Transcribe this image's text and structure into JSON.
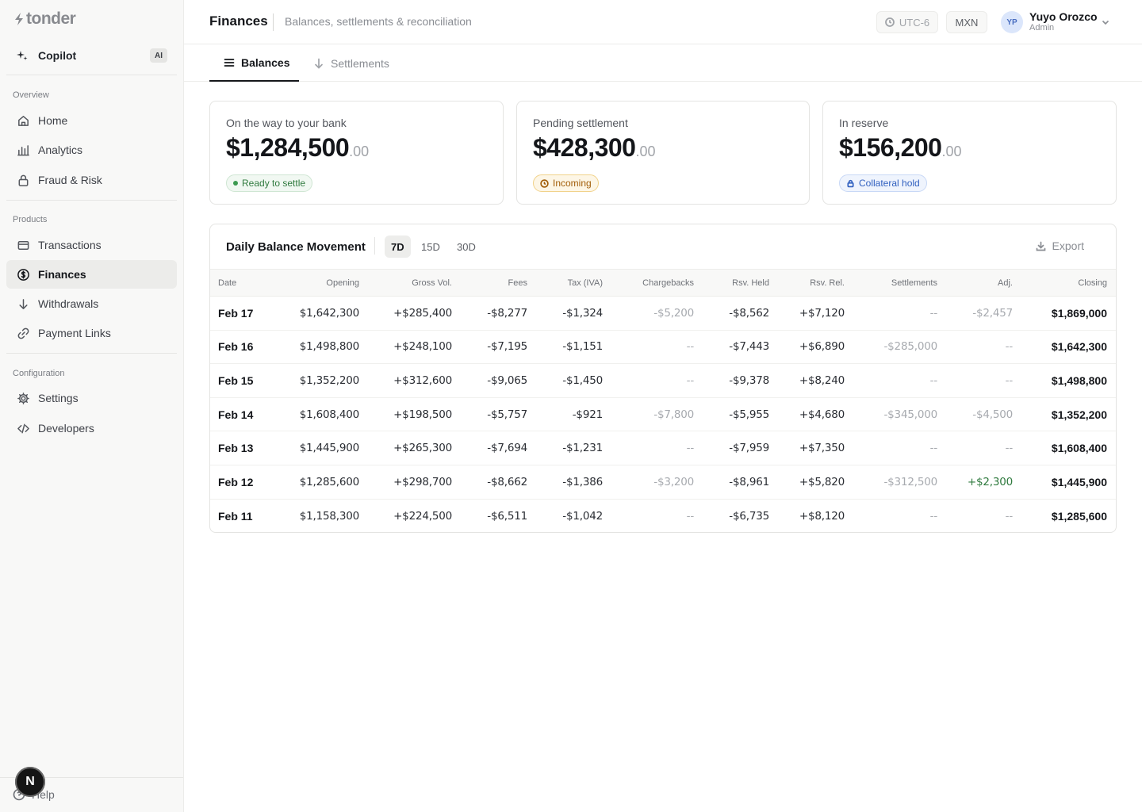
{
  "app": {
    "logo_text": "tonder"
  },
  "sidebar": {
    "copilot": {
      "label": "Copilot",
      "badge": "AI"
    },
    "sections": [
      {
        "label": "Overview"
      },
      {
        "label": "Products"
      },
      {
        "label": "Configuration"
      }
    ],
    "items": [
      {
        "label": "Home",
        "icon": "home-icon"
      },
      {
        "label": "Analytics",
        "icon": "bar-chart-icon"
      },
      {
        "label": "Fraud & Risk",
        "icon": "lock-icon"
      },
      {
        "label": "Transactions",
        "icon": "card-icon"
      },
      {
        "label": "Finances",
        "icon": "dollar-circle-icon",
        "active": true
      },
      {
        "label": "Withdrawals",
        "icon": "arrow-down-icon"
      },
      {
        "label": "Payment Links",
        "icon": "link-icon"
      },
      {
        "label": "Settings",
        "icon": "gear-icon"
      },
      {
        "label": "Developers",
        "icon": "code-icon"
      }
    ],
    "help_label": "Help",
    "floating_avatar": "N"
  },
  "header": {
    "title": "Finances",
    "subtitle": "Balances, settlements & reconciliation",
    "timezone": "UTC-6",
    "currency": "MXN",
    "user": {
      "initials": "YP",
      "name": "Yuyo Orozco",
      "role": "Admin"
    }
  },
  "tabs": [
    {
      "label": "Balances",
      "icon": "list-icon",
      "active": true
    },
    {
      "label": "Settlements",
      "icon": "arrow-down-icon",
      "active": false
    }
  ],
  "cards": [
    {
      "label": "On the way to your bank",
      "amount": "$1,284,500",
      "cents": ".00",
      "badge": "Ready to settle",
      "badge_color": "#2f7a3e"
    },
    {
      "label": "Pending settlement",
      "amount": "$428,300",
      "cents": ".00",
      "badge": "Incoming",
      "badge_color": "#a15c07"
    },
    {
      "label": "In reserve",
      "amount": "$156,200",
      "cents": ".00",
      "badge": "Collateral hold",
      "badge_color": "#2f5fbf"
    }
  ],
  "table_panel": {
    "title": "Daily Balance Movement",
    "ranges": [
      "7D",
      "15D",
      "30D"
    ],
    "active_range": "7D",
    "export_label": "Export",
    "columns": [
      "Date",
      "Opening",
      "Gross Vol.",
      "Fees",
      "Tax (IVA)",
      "Chargebacks",
      "Rsv. Held",
      "Rsv. Rel.",
      "Settlements",
      "Adj.",
      "Closing"
    ],
    "rows": [
      [
        "Feb 17",
        "$1,642,300",
        "+$285,400",
        "-$8,277",
        "-$1,324",
        "-$5,200",
        "-$8,562",
        "+$7,120",
        "--",
        "-$2,457",
        "$1,869,000"
      ],
      [
        "Feb 16",
        "$1,498,800",
        "+$248,100",
        "-$7,195",
        "-$1,151",
        "--",
        "-$7,443",
        "+$6,890",
        "-$285,000",
        "--",
        "$1,642,300"
      ],
      [
        "Feb 15",
        "$1,352,200",
        "+$312,600",
        "-$9,065",
        "-$1,450",
        "--",
        "-$9,378",
        "+$8,240",
        "--",
        "--",
        "$1,498,800"
      ],
      [
        "Feb 14",
        "$1,608,400",
        "+$198,500",
        "-$5,757",
        "-$921",
        "-$7,800",
        "-$5,955",
        "+$4,680",
        "-$345,000",
        "-$4,500",
        "$1,352,200"
      ],
      [
        "Feb 13",
        "$1,445,900",
        "+$265,300",
        "-$7,694",
        "-$1,231",
        "--",
        "-$7,959",
        "+$7,350",
        "--",
        "--",
        "$1,608,400"
      ],
      [
        "Feb 12",
        "$1,285,600",
        "+$298,700",
        "-$8,662",
        "-$1,386",
        "-$3,200",
        "-$8,961",
        "+$5,820",
        "-$312,500",
        "+$2,300",
        "$1,445,900"
      ],
      [
        "Feb 11",
        "$1,158,300",
        "+$224,500",
        "-$6,511",
        "-$1,042",
        "--",
        "-$6,735",
        "+$8,120",
        "--",
        "--",
        "$1,285,600"
      ]
    ]
  }
}
